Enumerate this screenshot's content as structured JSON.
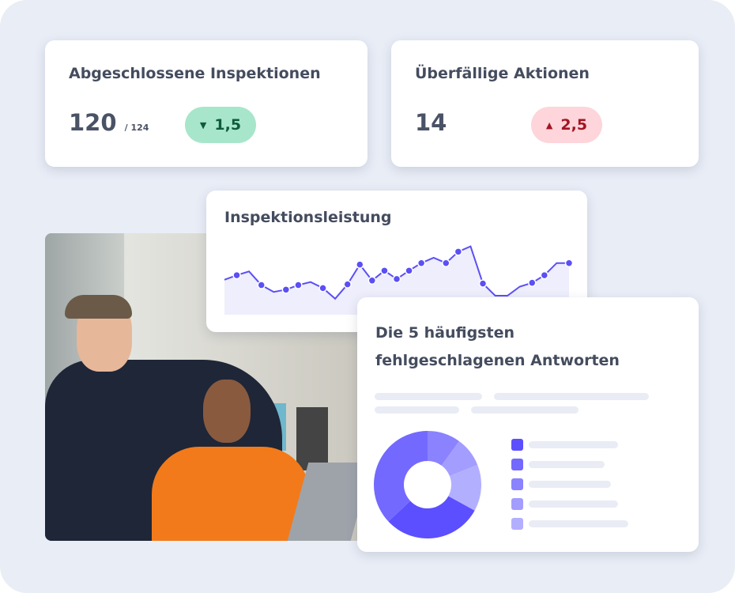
{
  "kpi_completed": {
    "title": "Abgeschlossene Inspektionen",
    "value": "120",
    "total": "/ 124",
    "delta": "1,5",
    "delta_direction": "down",
    "delta_bg": "#a8e6cb",
    "delta_color": "#0d5b3a"
  },
  "kpi_overdue": {
    "title": "Überfällige Aktionen",
    "value": "14",
    "delta": "2,5",
    "delta_direction": "up",
    "delta_bg": "#fdd5da",
    "delta_color": "#a31523"
  },
  "performance": {
    "title": "Inspektionsleistung",
    "line_color": "#5b4ff5",
    "fill_color": "#eeeefc",
    "values": [
      46,
      52,
      57,
      39,
      30,
      33,
      39,
      43,
      35,
      21,
      40,
      66,
      45,
      58,
      47,
      58,
      68,
      75,
      68,
      83,
      90,
      41,
      25,
      25,
      37,
      42,
      52,
      68,
      68
    ],
    "dots": [
      1,
      3,
      5,
      6,
      8,
      10,
      11,
      12,
      13,
      14,
      15,
      16,
      18,
      19,
      21,
      25,
      26,
      28
    ]
  },
  "failed_answers": {
    "title": "Die 5 häufigsten fehlgeschlagenen Antworten",
    "chart_data": {
      "type": "pie",
      "shares": [
        0.1,
        0.09,
        0.14,
        0.3,
        0.37
      ],
      "colors": [
        "#8a82ff",
        "#a39dff",
        "#b3afff",
        "#5b4fff",
        "#7369ff"
      ],
      "legend_colors": [
        "#5b4fff",
        "#7369ff",
        "#8a82ff",
        "#a39dff",
        "#b3afff"
      ]
    }
  }
}
